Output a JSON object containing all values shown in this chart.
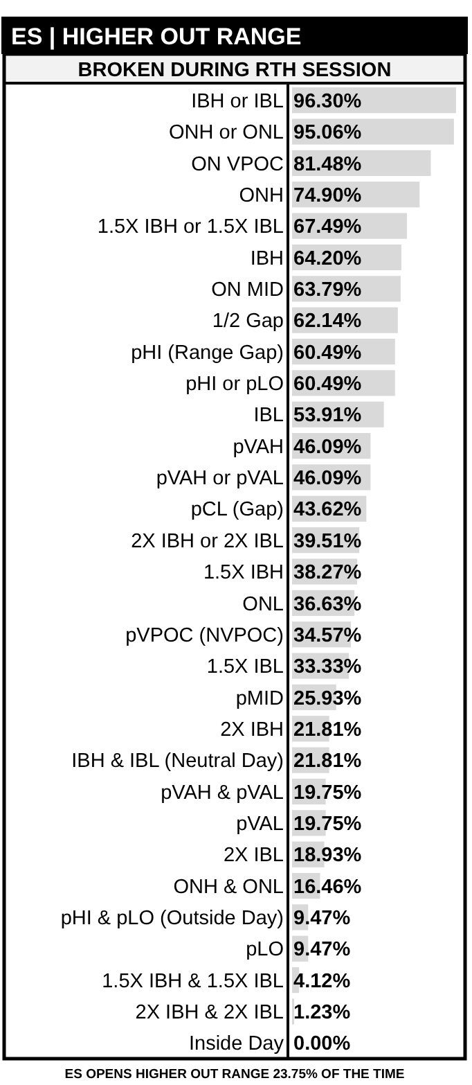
{
  "chart_data": {
    "type": "bar",
    "orientation": "horizontal",
    "title": "ES | HIGHER OUT RANGE",
    "subtitle": "BROKEN DURING RTH SESSION",
    "categories": [
      "IBH or IBL",
      "ONH or ONL",
      "ON VPOC",
      "ONH",
      "1.5X IBH or 1.5X IBL",
      "IBH",
      "ON MID",
      "1/2 Gap",
      "pHI (Range Gap)",
      "pHI or pLO",
      "IBL",
      "pVAH",
      "pVAH or pVAL",
      "pCL (Gap)",
      "2X IBH or 2X IBL",
      "1.5X IBH",
      "ONL",
      "pVPOC (NVPOC)",
      "1.5X IBL",
      "pMID",
      "2X IBH",
      "IBH & IBL (Neutral Day)",
      "pVAH & pVAL",
      "pVAL",
      "2X IBL",
      "ONH & ONL",
      "pHI & pLO (Outside Day)",
      "pLO",
      "1.5X IBH & 1.5X IBL",
      "2X IBH & 2X IBL",
      "Inside Day"
    ],
    "values": [
      96.3,
      95.06,
      81.48,
      74.9,
      67.49,
      64.2,
      63.79,
      62.14,
      60.49,
      60.49,
      53.91,
      46.09,
      46.09,
      43.62,
      39.51,
      38.27,
      36.63,
      34.57,
      33.33,
      25.93,
      21.81,
      21.81,
      19.75,
      19.75,
      18.93,
      16.46,
      9.47,
      9.47,
      4.12,
      1.23,
      0.0
    ],
    "value_labels": [
      "96.30%",
      "95.06%",
      "81.48%",
      "74.90%",
      "67.49%",
      "64.20%",
      "63.79%",
      "62.14%",
      "60.49%",
      "60.49%",
      "53.91%",
      "46.09%",
      "46.09%",
      "43.62%",
      "39.51%",
      "38.27%",
      "36.63%",
      "34.57%",
      "33.33%",
      "25.93%",
      "21.81%",
      "21.81%",
      "19.75%",
      "19.75%",
      "18.93%",
      "16.46%",
      "9.47%",
      "9.47%",
      "4.12%",
      "1.23%",
      "0.00%"
    ],
    "color": "#d9d9d9",
    "xlim": [
      0,
      100
    ],
    "tick_labels": "y",
    "annotations": [
      "ES OPENS HIGHER OUT RANGE 23.75% OF THE TIME"
    ]
  }
}
